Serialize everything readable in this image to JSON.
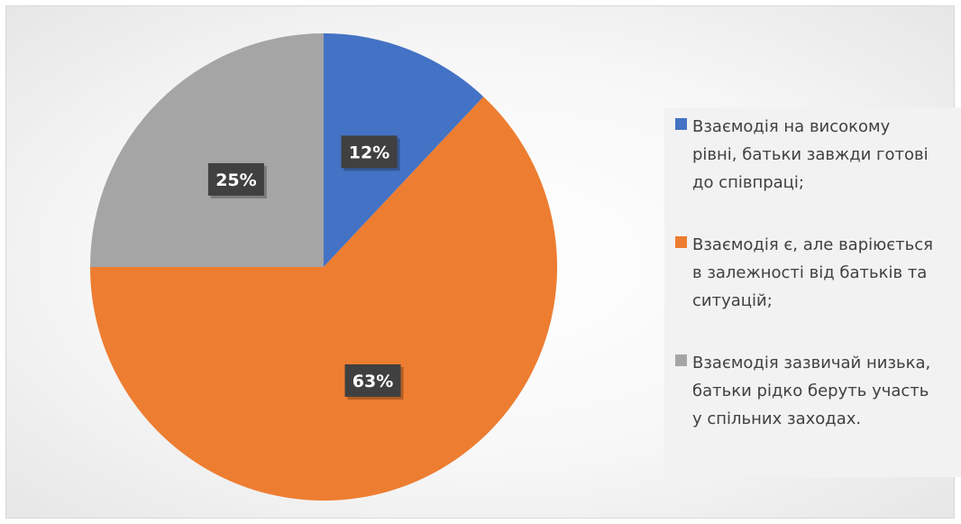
{
  "chart_data": {
    "type": "pie",
    "title": "",
    "start_angle_deg": 0,
    "legend_position": "right",
    "slices": [
      {
        "label": "Взаємодія на високому рівні, батьки завжди готові до співпраці;",
        "value": 12,
        "display": "12%",
        "color": "#4472C4"
      },
      {
        "label": "Взаємодія є, але варіюється в залежності від батьків та ситуацій;",
        "value": 63,
        "display": "63%",
        "color": "#ED7D31"
      },
      {
        "label": "Взаємодія зазвичай низька, батьки рідко беруть участь у спільних заходах.",
        "value": 25,
        "display": "25%",
        "color": "#A5A5A5"
      }
    ]
  }
}
